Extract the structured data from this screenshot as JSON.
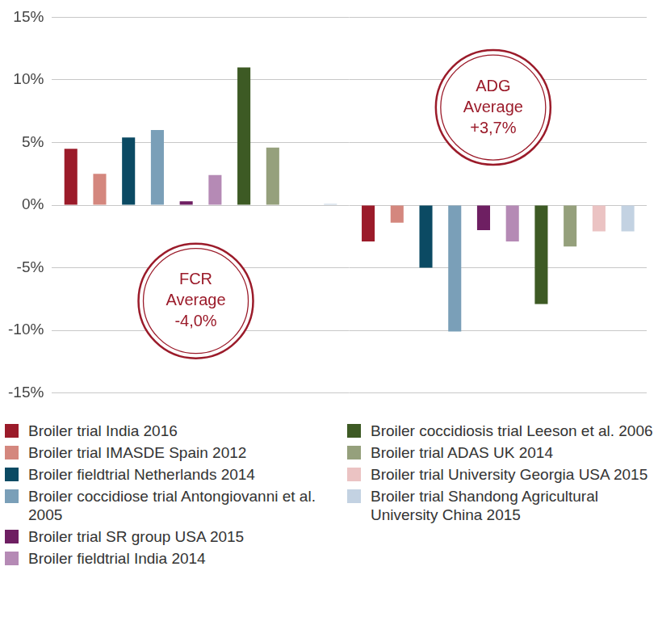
{
  "chart_data": {
    "type": "bar",
    "categories": [
      null,
      null
    ],
    "series": [
      {
        "name": "Broiler trial India 2016",
        "color": "#9b1b2a",
        "values": [
          4.5,
          -2.9
        ]
      },
      {
        "name": "Broiler trial IMASDE Spain 2012",
        "color": "#d4877e",
        "values": [
          2.5,
          -1.4
        ]
      },
      {
        "name": "Broiler fieldtrial Netherlands 2014",
        "color": "#0b4a63",
        "values": [
          5.4,
          -5.0
        ]
      },
      {
        "name": "Broiler coccidiose trial Antongiovanni et al. 2005",
        "color": "#7a9fb8",
        "values": [
          6.0,
          -10.1
        ]
      },
      {
        "name": "Broiler trial SR group USA 2015",
        "color": "#6e1f62",
        "values": [
          0.3,
          -2.0
        ]
      },
      {
        "name": "Broiler fieldtrial India 2014",
        "color": "#b58ab5",
        "values": [
          2.4,
          -2.9
        ]
      },
      {
        "name": "Broiler coccidiosis trial Leeson et al. 2006",
        "color": "#3d5a24",
        "values": [
          11.0,
          -7.9
        ]
      },
      {
        "name": "Broiler trial ADAS UK 2014",
        "color": "#95a07c",
        "values": [
          4.6,
          -3.3
        ]
      },
      {
        "name": "Broiler trial University Georgia USA 2015",
        "color": "#ebc3c3",
        "values": [
          null,
          -2.1
        ]
      },
      {
        "name": "Broiler trial Shandong Agricultural University China 2015",
        "color": "#c3d2e2",
        "values": [
          0.1,
          -2.1
        ]
      }
    ],
    "ylim": [
      -15,
      15
    ],
    "yticks": [
      {
        "value": -15,
        "label": "-15%"
      },
      {
        "value": -10,
        "label": "-10%"
      },
      {
        "value": -5,
        "label": "-5%"
      },
      {
        "value": 0,
        "label": "0%"
      },
      {
        "value": 5,
        "label": "5%"
      },
      {
        "value": 10,
        "label": "10%"
      },
      {
        "value": 15,
        "label": "15%"
      }
    ],
    "annotations": [
      "ADG Average +3,7%",
      "FCR Average -4,0%"
    ],
    "grid": true,
    "legend": "bottom",
    "tick_labels": "y"
  }
}
